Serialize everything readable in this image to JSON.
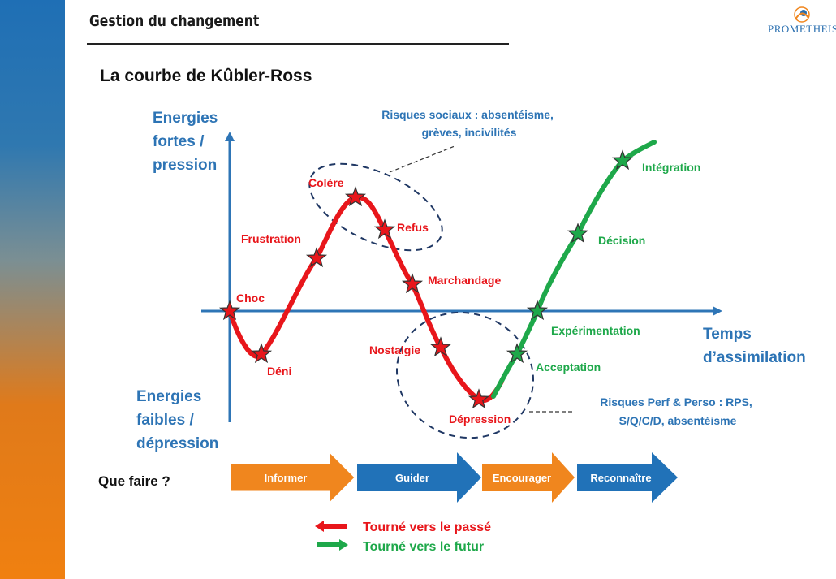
{
  "header": {
    "title": "Gestion du changement",
    "logo_text": "PROMETHEIS"
  },
  "slide": {
    "title": "La courbe de Kûbler-Ross"
  },
  "axes": {
    "y_top": [
      "Energies",
      "fortes /",
      "pression"
    ],
    "y_bottom": [
      "Energies",
      "faibles /",
      "dépression"
    ],
    "x": [
      "Temps",
      "d’assimilation"
    ]
  },
  "stages": {
    "past": [
      "Choc",
      "Déni",
      "Frustration",
      "Colère",
      "Refus",
      "Marchandage",
      "Nostalgie",
      "Dépression"
    ],
    "future": [
      "Acceptation",
      "Expérimentation",
      "Décision",
      "Intégration"
    ]
  },
  "risks": {
    "social": [
      "Risques sociaux : absentéisme,",
      "grèves, incivilités"
    ],
    "perf": [
      "Risques Perf & Perso : RPS,",
      "S/Q/C/D, absentéisme"
    ]
  },
  "actions": {
    "label": "Que faire ?",
    "steps": [
      "Informer",
      "Guider",
      "Encourager",
      "Reconnaître"
    ]
  },
  "legend": {
    "past": "Tourné vers le passé",
    "future": "Tourné vers le futur"
  },
  "colors": {
    "past": "#e8161b",
    "future": "#1ea84a",
    "axis": "#2e75b6",
    "orange": "#f0861e",
    "blue": "#2172b8",
    "label_blue": "#2d74b5"
  }
}
